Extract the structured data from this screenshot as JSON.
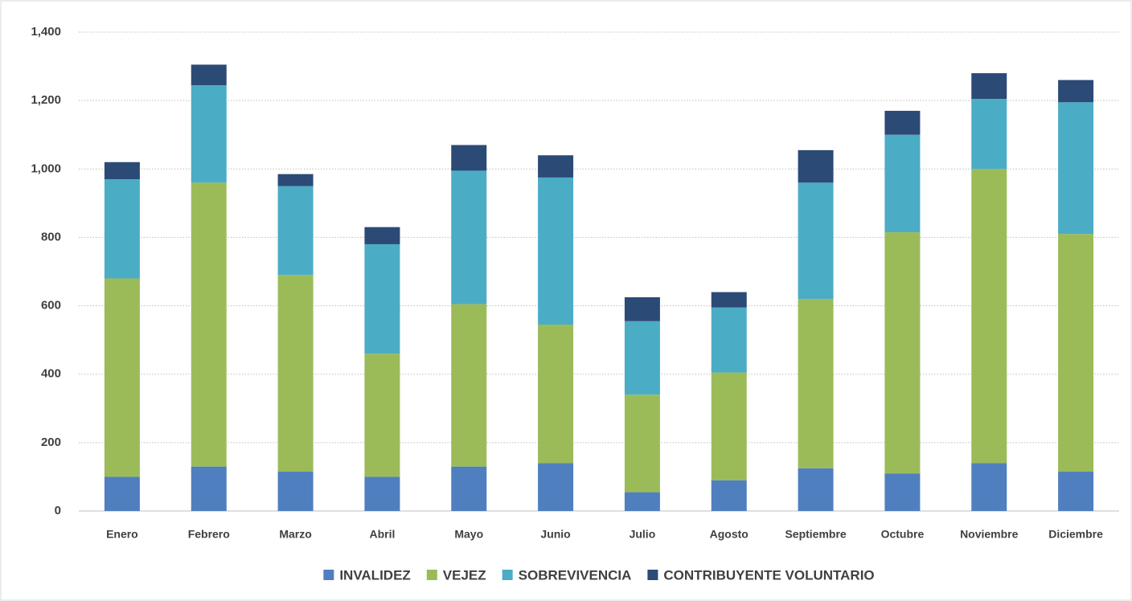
{
  "chart_data": {
    "type": "stacked_bar",
    "categories": [
      "Enero",
      "Febrero",
      "Marzo",
      "Abril",
      "Mayo",
      "Junio",
      "Julio",
      "Agosto",
      "Septiembre",
      "Octubre",
      "Noviembre",
      "Diciembre"
    ],
    "series": [
      {
        "name": "INVALIDEZ",
        "color": "#4f7fbe",
        "values": [
          100,
          130,
          115,
          100,
          130,
          140,
          55,
          90,
          125,
          110,
          140,
          115
        ]
      },
      {
        "name": "VEJEZ",
        "color": "#9bbb59",
        "values": [
          580,
          830,
          575,
          360,
          475,
          405,
          285,
          315,
          495,
          705,
          860,
          695
        ]
      },
      {
        "name": "SOBREVIVENCIA",
        "color": "#4bacc6",
        "values": [
          290,
          285,
          260,
          320,
          390,
          430,
          215,
          190,
          340,
          285,
          205,
          385
        ]
      },
      {
        "name": "CONTRIBUYENTE VOLUNTARIO",
        "color": "#2c4a76",
        "values": [
          50,
          60,
          35,
          50,
          75,
          65,
          70,
          45,
          95,
          70,
          75,
          65
        ]
      }
    ],
    "ylim": [
      0,
      1400
    ],
    "yticks": [
      0,
      200,
      400,
      600,
      800,
      {
        "value": 1000,
        "label": "1,000"
      },
      {
        "value": 1200,
        "label": "1,200"
      },
      {
        "value": 1400,
        "label": "1,400"
      }
    ],
    "grid": true,
    "legend": "bottom"
  }
}
